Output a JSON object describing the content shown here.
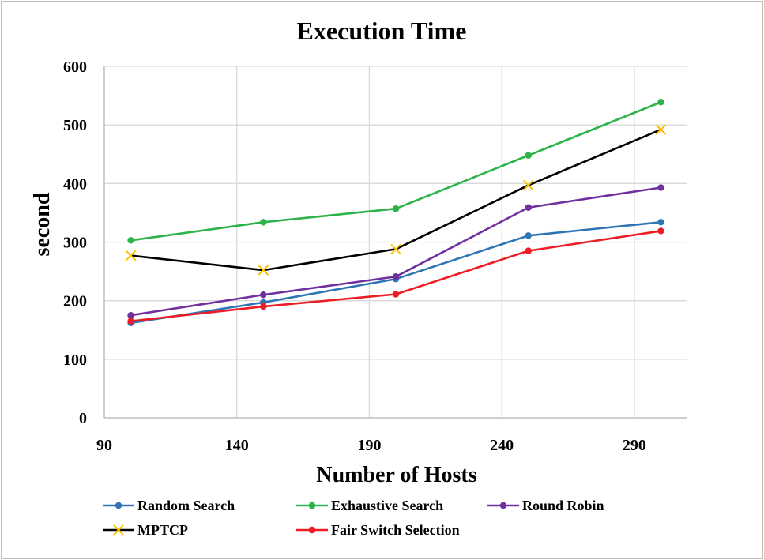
{
  "chart_data": {
    "type": "line",
    "title": "Execution Time",
    "xlabel": "Number of Hosts",
    "ylabel": "second",
    "x": [
      100,
      150,
      200,
      250,
      300
    ],
    "xlim": [
      90,
      310
    ],
    "ylim": [
      0,
      600
    ],
    "xticks": [
      90,
      140,
      190,
      240,
      290
    ],
    "yticks": [
      0,
      100,
      200,
      300,
      400,
      500,
      600
    ],
    "grid": true,
    "legend_position": "bottom",
    "series": [
      {
        "name": "Random Search",
        "color": "#2e75b6",
        "marker": "circle",
        "values": [
          162,
          197,
          237,
          311,
          334
        ]
      },
      {
        "name": "Exhaustive  Search",
        "color": "#2db34a",
        "marker": "circle",
        "values": [
          303,
          334,
          357,
          448,
          539
        ]
      },
      {
        "name": "Round Robin",
        "color": "#7030a0",
        "marker": "circle",
        "values": [
          175,
          210,
          241,
          359,
          393
        ]
      },
      {
        "name": "MPTCP",
        "color": "#000000",
        "marker": "x",
        "marker_color": "#ffc000",
        "values": [
          277,
          252,
          288,
          397,
          492
        ]
      },
      {
        "name": "Fair Switch Selection",
        "color": "#ee1c25",
        "marker": "circle",
        "values": [
          165,
          190,
          211,
          285,
          319
        ]
      }
    ]
  }
}
